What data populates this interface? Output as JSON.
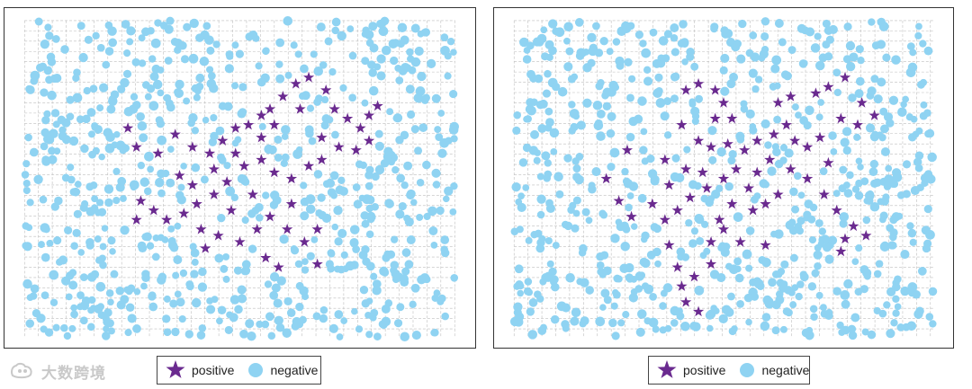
{
  "colors": {
    "positive": "#6a2a8f",
    "negative": "#8fd3f2",
    "grid": "#bdbdbd",
    "border": "#333333"
  },
  "watermark": {
    "text": "大数跨境"
  },
  "chart_data": [
    {
      "type": "scatter",
      "grid": true,
      "legend_placement": "bottom",
      "series": [
        {
          "name": "positive",
          "marker": "star",
          "points": [
            [
              0.24,
              0.34
            ],
            [
              0.26,
              0.4
            ],
            [
              0.31,
              0.42
            ],
            [
              0.35,
              0.36
            ],
            [
              0.39,
              0.4
            ],
            [
              0.43,
              0.42
            ],
            [
              0.46,
              0.38
            ],
            [
              0.49,
              0.34
            ],
            [
              0.52,
              0.33
            ],
            [
              0.55,
              0.3
            ],
            [
              0.57,
              0.28
            ],
            [
              0.6,
              0.24
            ],
            [
              0.63,
              0.2
            ],
            [
              0.66,
              0.18
            ],
            [
              0.7,
              0.22
            ],
            [
              0.72,
              0.28
            ],
            [
              0.75,
              0.31
            ],
            [
              0.78,
              0.34
            ],
            [
              0.8,
              0.3
            ],
            [
              0.82,
              0.27
            ],
            [
              0.8,
              0.38
            ],
            [
              0.77,
              0.41
            ],
            [
              0.73,
              0.4
            ],
            [
              0.69,
              0.37
            ],
            [
              0.66,
              0.46
            ],
            [
              0.62,
              0.5
            ],
            [
              0.58,
              0.48
            ],
            [
              0.55,
              0.44
            ],
            [
              0.51,
              0.46
            ],
            [
              0.47,
              0.51
            ],
            [
              0.44,
              0.55
            ],
            [
              0.4,
              0.58
            ],
            [
              0.37,
              0.61
            ],
            [
              0.33,
              0.63
            ],
            [
              0.3,
              0.6
            ],
            [
              0.27,
              0.57
            ],
            [
              0.41,
              0.66
            ],
            [
              0.45,
              0.68
            ],
            [
              0.5,
              0.7
            ],
            [
              0.54,
              0.66
            ],
            [
              0.57,
              0.62
            ],
            [
              0.61,
              0.66
            ],
            [
              0.65,
              0.7
            ],
            [
              0.68,
              0.66
            ],
            [
              0.56,
              0.75
            ],
            [
              0.59,
              0.78
            ],
            [
              0.42,
              0.72
            ],
            [
              0.26,
              0.63
            ],
            [
              0.36,
              0.49
            ],
            [
              0.48,
              0.6
            ],
            [
              0.53,
              0.55
            ],
            [
              0.62,
              0.58
            ],
            [
              0.58,
              0.33
            ],
            [
              0.64,
              0.28
            ],
            [
              0.69,
              0.44
            ],
            [
              0.44,
              0.47
            ],
            [
              0.39,
              0.52
            ],
            [
              0.49,
              0.42
            ],
            [
              0.55,
              0.37
            ],
            [
              0.68,
              0.77
            ]
          ]
        },
        {
          "name": "negative",
          "marker": "circle",
          "points": []
        }
      ]
    },
    {
      "type": "scatter",
      "grid": true,
      "legend_placement": "bottom",
      "series": [
        {
          "name": "positive",
          "marker": "star",
          "points": [
            [
              0.27,
              0.41
            ],
            [
              0.22,
              0.5
            ],
            [
              0.25,
              0.57
            ],
            [
              0.28,
              0.62
            ],
            [
              0.33,
              0.58
            ],
            [
              0.37,
              0.52
            ],
            [
              0.41,
              0.47
            ],
            [
              0.39,
              0.6
            ],
            [
              0.36,
              0.44
            ],
            [
              0.42,
              0.56
            ],
            [
              0.46,
              0.53
            ],
            [
              0.5,
              0.5
            ],
            [
              0.45,
              0.48
            ],
            [
              0.44,
              0.38
            ],
            [
              0.4,
              0.33
            ],
            [
              0.41,
              0.22
            ],
            [
              0.44,
              0.2
            ],
            [
              0.48,
              0.22
            ],
            [
              0.5,
              0.26
            ],
            [
              0.52,
              0.31
            ],
            [
              0.48,
              0.31
            ],
            [
              0.47,
              0.4
            ],
            [
              0.51,
              0.39
            ],
            [
              0.55,
              0.41
            ],
            [
              0.53,
              0.47
            ],
            [
              0.56,
              0.53
            ],
            [
              0.6,
              0.58
            ],
            [
              0.63,
              0.55
            ],
            [
              0.58,
              0.48
            ],
            [
              0.61,
              0.44
            ],
            [
              0.58,
              0.38
            ],
            [
              0.62,
              0.36
            ],
            [
              0.65,
              0.33
            ],
            [
              0.67,
              0.38
            ],
            [
              0.7,
              0.4
            ],
            [
              0.73,
              0.37
            ],
            [
              0.75,
              0.45
            ],
            [
              0.74,
              0.55
            ],
            [
              0.77,
              0.6
            ],
            [
              0.81,
              0.65
            ],
            [
              0.84,
              0.68
            ],
            [
              0.79,
              0.69
            ],
            [
              0.78,
              0.73
            ],
            [
              0.7,
              0.5
            ],
            [
              0.66,
              0.47
            ],
            [
              0.63,
              0.26
            ],
            [
              0.66,
              0.24
            ],
            [
              0.72,
              0.23
            ],
            [
              0.75,
              0.21
            ],
            [
              0.79,
              0.18
            ],
            [
              0.83,
              0.26
            ],
            [
              0.86,
              0.3
            ],
            [
              0.82,
              0.33
            ],
            [
              0.78,
              0.31
            ],
            [
              0.52,
              0.58
            ],
            [
              0.49,
              0.63
            ],
            [
              0.47,
              0.7
            ],
            [
              0.5,
              0.66
            ],
            [
              0.54,
              0.7
            ],
            [
              0.47,
              0.77
            ],
            [
              0.43,
              0.81
            ],
            [
              0.4,
              0.84
            ],
            [
              0.41,
              0.89
            ],
            [
              0.44,
              0.92
            ],
            [
              0.39,
              0.78
            ],
            [
              0.37,
              0.71
            ],
            [
              0.57,
              0.6
            ],
            [
              0.6,
              0.71
            ],
            [
              0.36,
              0.63
            ]
          ]
        },
        {
          "name": "negative",
          "marker": "circle",
          "points": []
        }
      ]
    }
  ]
}
